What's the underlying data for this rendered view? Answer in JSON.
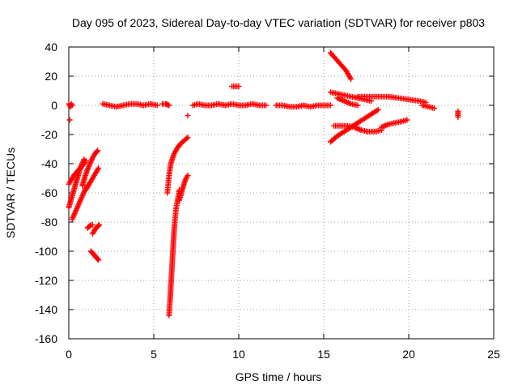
{
  "chart_data": {
    "type": "scatter",
    "title": "Day 095 of 2023, Sidereal Day-to-day VTEC variation (SDTVAR) for receiver p803",
    "xlabel": "GPS time / hours",
    "ylabel": "SDTVAR / TECUs",
    "xlim": [
      0,
      25
    ],
    "ylim": [
      -160,
      40
    ],
    "xticks": [
      0,
      5,
      10,
      15,
      20,
      25
    ],
    "yticks": [
      -160,
      -140,
      -120,
      -100,
      -80,
      -60,
      -40,
      -20,
      0,
      20,
      40
    ],
    "grid": true,
    "marker": "plus",
    "color": "#ff0000",
    "series": [
      {
        "name": "segment-1",
        "x": [
          0.0,
          0.05,
          0.1,
          0.15,
          0.2
        ],
        "y": [
          1,
          0,
          -1,
          1,
          0
        ]
      },
      {
        "name": "segment-2",
        "x": [
          0.05
        ],
        "y": [
          -10
        ]
      },
      {
        "name": "segment-3",
        "x": [
          0.0,
          0.15,
          0.3,
          0.45,
          0.6,
          0.75,
          0.9
        ],
        "y": [
          -70,
          -64,
          -58,
          -52,
          -46,
          -41,
          -37
        ]
      },
      {
        "name": "segment-4",
        "x": [
          0.0,
          0.15,
          0.3,
          0.45,
          0.6,
          0.75,
          0.9,
          1.0
        ],
        "y": [
          -54,
          -51,
          -48,
          -46,
          -44,
          -42,
          -40,
          -38
        ]
      },
      {
        "name": "segment-5",
        "x": [
          0.2,
          0.35,
          0.5,
          0.65,
          0.8,
          0.95,
          1.1
        ],
        "y": [
          -78,
          -74,
          -70,
          -66,
          -62,
          -58,
          -55
        ]
      },
      {
        "name": "segment-6",
        "x": [
          0.8,
          0.95,
          1.1,
          1.25,
          1.4,
          1.55,
          1.7
        ],
        "y": [
          -55,
          -49,
          -44,
          -40,
          -36,
          -33,
          -31
        ]
      },
      {
        "name": "segment-7",
        "x": [
          1.0,
          1.15,
          1.3,
          1.45,
          1.6,
          1.75
        ],
        "y": [
          -58,
          -55,
          -52,
          -49,
          -46,
          -43
        ]
      },
      {
        "name": "segment-8",
        "x": [
          1.1,
          1.2,
          1.3,
          1.4
        ],
        "y": [
          -84,
          -83,
          -82,
          -82
        ]
      },
      {
        "name": "segment-9",
        "x": [
          1.4,
          1.5,
          1.6,
          1.7,
          1.8
        ],
        "y": [
          -88,
          -86,
          -84,
          -83,
          -82
        ]
      },
      {
        "name": "segment-10",
        "x": [
          1.3,
          1.45,
          1.6,
          1.75
        ],
        "y": [
          -100,
          -102,
          -104,
          -106
        ]
      },
      {
        "name": "segment-11",
        "x": [
          2.0,
          2.4,
          2.8,
          3.2,
          3.6,
          4.0,
          4.4,
          4.8,
          5.2
        ],
        "y": [
          1,
          0,
          -1,
          0,
          1,
          1,
          0,
          1,
          0
        ]
      },
      {
        "name": "segment-12",
        "x": [
          5.5,
          5.7,
          5.9
        ],
        "y": [
          1,
          1,
          0
        ]
      },
      {
        "name": "segment-13",
        "x": [
          5.9,
          5.95,
          6.0,
          6.05,
          6.1,
          6.15,
          6.2,
          6.3,
          6.4,
          6.5
        ],
        "y": [
          -144,
          -135,
          -125,
          -115,
          -105,
          -95,
          -85,
          -72,
          -65,
          -58
        ]
      },
      {
        "name": "segment-14",
        "x": [
          5.8,
          5.9,
          6.0,
          6.2,
          6.4,
          6.6,
          6.8,
          7.0
        ],
        "y": [
          -60,
          -48,
          -40,
          -33,
          -29,
          -26,
          -24,
          -22
        ]
      },
      {
        "name": "segment-15",
        "x": [
          6.5,
          6.6,
          6.7,
          6.8,
          6.9,
          7.0
        ],
        "y": [
          -65,
          -61,
          -57,
          -53,
          -50,
          -48
        ]
      },
      {
        "name": "segment-16",
        "x": [
          7.0
        ],
        "y": [
          -7
        ]
      },
      {
        "name": "segment-17",
        "x": [
          7.3,
          7.6,
          8.0,
          8.4,
          8.8,
          9.2,
          9.6,
          10.0,
          10.4,
          10.8,
          11.2,
          11.6
        ],
        "y": [
          0,
          1,
          0,
          0,
          1,
          0,
          1,
          0,
          0,
          1,
          0,
          0
        ]
      },
      {
        "name": "segment-18",
        "x": [
          9.6,
          9.8,
          10.0
        ],
        "y": [
          13,
          13,
          13
        ]
      },
      {
        "name": "segment-19",
        "x": [
          12.2,
          12.6,
          13.0,
          13.4,
          13.8,
          14.2,
          14.6,
          15.0,
          15.4
        ],
        "y": [
          0,
          0,
          -1,
          -1,
          0,
          -1,
          0,
          0,
          0
        ]
      },
      {
        "name": "segment-20",
        "x": [
          15.4,
          15.7,
          16.0,
          16.3,
          16.6
        ],
        "y": [
          36,
          32,
          28,
          24,
          18
        ]
      },
      {
        "name": "segment-21",
        "x": [
          15.4,
          15.8,
          16.2,
          16.6,
          17.0,
          17.4,
          17.8
        ],
        "y": [
          9,
          8,
          7,
          6,
          5,
          4,
          3
        ]
      },
      {
        "name": "segment-22",
        "x": [
          15.8,
          16.2,
          16.6,
          17.0
        ],
        "y": [
          5,
          3,
          1,
          0
        ]
      },
      {
        "name": "segment-23",
        "x": [
          17.0,
          17.6,
          18.2,
          18.8,
          19.4,
          20.0,
          20.6,
          21.0
        ],
        "y": [
          6,
          6,
          6,
          6,
          5,
          4,
          3,
          2
        ]
      },
      {
        "name": "segment-24",
        "x": [
          20.8,
          21.2,
          21.5
        ],
        "y": [
          0,
          -1,
          -2
        ]
      },
      {
        "name": "segment-25",
        "x": [
          15.4,
          15.8,
          16.2,
          16.6,
          17.0,
          17.4,
          17.8,
          18.2
        ],
        "y": [
          -25,
          -21,
          -18,
          -15,
          -12,
          -9,
          -6,
          -3
        ]
      },
      {
        "name": "segment-26",
        "x": [
          15.6,
          16.0,
          16.4,
          16.8,
          17.2,
          17.6,
          18.0,
          18.4
        ],
        "y": [
          -14,
          -14,
          -14,
          -15,
          -17,
          -18,
          -18,
          -17
        ]
      },
      {
        "name": "segment-27",
        "x": [
          18.4,
          18.8,
          19.2,
          19.6,
          19.9
        ],
        "y": [
          -15,
          -13,
          -12,
          -11,
          -10
        ]
      },
      {
        "name": "segment-28",
        "x": [
          22.9,
          22.9,
          22.9
        ],
        "y": [
          -4,
          -6,
          -8
        ]
      }
    ]
  }
}
